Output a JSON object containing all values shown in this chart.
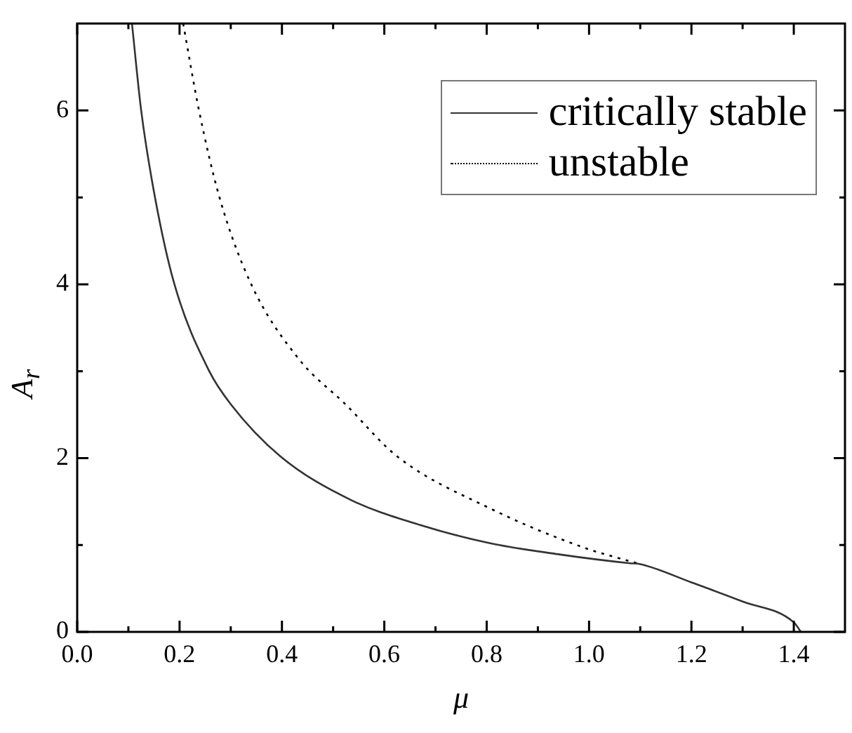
{
  "chart_data": {
    "type": "line",
    "xlabel": "μ",
    "ylabel": "A$_{r}$",
    "xlim": [
      0,
      1.5
    ],
    "ylim": [
      0,
      7
    ],
    "xticks": [
      {
        "value": 0,
        "label": "0.0"
      },
      {
        "value": 0.1,
        "label": null
      },
      {
        "value": 0.2,
        "label": "0.2"
      },
      {
        "value": 0.3,
        "label": null
      },
      {
        "value": 0.4,
        "label": "0.4"
      },
      {
        "value": 0.5,
        "label": null
      },
      {
        "value": 0.6,
        "label": "0.6"
      },
      {
        "value": 0.7,
        "label": null
      },
      {
        "value": 0.8,
        "label": "0.8"
      },
      {
        "value": 0.9,
        "label": null
      },
      {
        "value": 1.0,
        "label": "1.0"
      },
      {
        "value": 1.1,
        "label": null
      },
      {
        "value": 1.2,
        "label": "1.2"
      },
      {
        "value": 1.3,
        "label": null
      },
      {
        "value": 1.4,
        "label": "1.4"
      }
    ],
    "yticks": [
      0,
      {
        "value": 1,
        "label": null
      },
      2,
      {
        "value": 3,
        "label": null
      },
      4,
      {
        "value": 5,
        "label": null
      },
      6
    ],
    "grid": false,
    "legend": "top right",
    "marker": "none",
    "series": [
      {
        "name": "critically stable",
        "color": "#333333",
        "line_style": "solid",
        "x": [
          0.107,
          0.125,
          0.152,
          0.19,
          0.258,
          0.3,
          0.397,
          0.534,
          0.67,
          0.807,
          0.944,
          1.08,
          1.1,
          1.2,
          1.3,
          1.4,
          1.414
        ],
        "values": [
          7,
          6,
          5,
          4,
          3,
          2.62,
          2.02,
          1.52,
          1.23,
          1.02,
          0.89,
          0.79,
          0.78,
          0.57,
          0.35,
          0.11,
          0
        ]
      },
      {
        "name": "unstable",
        "color": "#000000",
        "line_style": "dotted",
        "x": [
          0.207,
          0.238,
          0.278,
          0.34,
          0.433,
          0.524,
          0.625,
          0.807,
          0.99,
          1.1
        ],
        "values": [
          7,
          6,
          5,
          4,
          3.14,
          2.62,
          2.02,
          1.42,
          0.97,
          0.78
        ]
      }
    ]
  }
}
